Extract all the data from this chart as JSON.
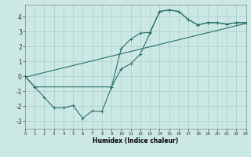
{
  "xlabel": "Humidex (Indice chaleur)",
  "bg_color": "#cce8e5",
  "line_color": "#2a7068",
  "grid_color": "#aaccca",
  "xlim": [
    0,
    23
  ],
  "ylim": [
    -3.5,
    4.8
  ],
  "xticks": [
    0,
    1,
    2,
    3,
    4,
    5,
    6,
    7,
    8,
    9,
    10,
    11,
    12,
    13,
    14,
    15,
    16,
    17,
    18,
    19,
    20,
    21,
    22,
    23
  ],
  "yticks": [
    -3,
    -2,
    -1,
    0,
    1,
    2,
    3,
    4
  ],
  "line1_x": [
    0,
    1,
    2,
    3,
    4,
    5,
    6,
    7,
    8,
    9,
    10,
    11,
    12,
    13,
    14,
    15,
    16,
    17,
    18,
    19,
    20,
    21,
    22,
    23
  ],
  "line1_y": [
    0.0,
    -0.7,
    -1.4,
    -2.1,
    -2.1,
    -1.95,
    -2.8,
    -2.3,
    -2.35,
    -0.7,
    1.85,
    2.5,
    2.9,
    2.95,
    4.35,
    4.45,
    4.35,
    3.8,
    3.45,
    3.6,
    3.6,
    3.5,
    3.6,
    3.6
  ],
  "line2_x": [
    0,
    1,
    9,
    10,
    11,
    12,
    13,
    14,
    15,
    16,
    17,
    18,
    19,
    20,
    21,
    22,
    23
  ],
  "line2_y": [
    0.0,
    -0.7,
    -0.7,
    0.5,
    0.85,
    1.5,
    2.9,
    4.35,
    4.45,
    4.35,
    3.8,
    3.45,
    3.6,
    3.6,
    3.5,
    3.6,
    3.6
  ],
  "line3_x": [
    0,
    23
  ],
  "line3_y": [
    -0.05,
    3.55
  ]
}
